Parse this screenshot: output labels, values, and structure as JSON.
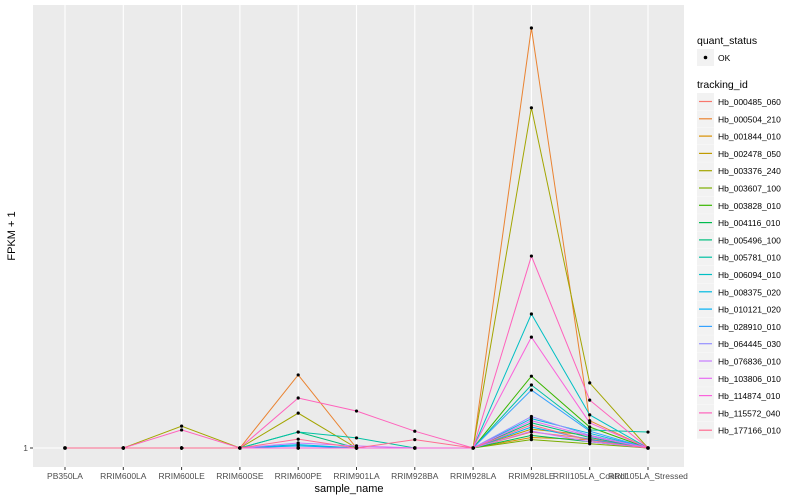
{
  "chart_data": {
    "type": "line",
    "xlabel": "sample_name",
    "ylabel": "FPKM + 1",
    "y_ticks": [
      "1"
    ],
    "ylim": [
      -3,
      106
    ],
    "grid": true,
    "legend_position": "right",
    "categories": [
      "PB350LA",
      "RRIM600LA",
      "RRIM600LE",
      "RRIM600SE",
      "RRIM600PE",
      "RRIM901LA",
      "RRIM928BA",
      "RRIM928LA",
      "RRIM928LE",
      "RRII105LA_Control",
      "RRII105LA_Stressed"
    ],
    "quant_status_legend": {
      "title": "quant_status",
      "entries": [
        "OK"
      ]
    },
    "legend_title": "tracking_id",
    "series": [
      {
        "name": "Hb_000485_060",
        "color": "#F8766D",
        "values": [
          1,
          1,
          1,
          1,
          1,
          1,
          1,
          1,
          4.8,
          3.2,
          1
        ]
      },
      {
        "name": "Hb_000504_210",
        "color": "#EA8331",
        "values": [
          1,
          1,
          1,
          1,
          18.4,
          1,
          1,
          1,
          101,
          7.5,
          1
        ]
      },
      {
        "name": "Hb_001844_010",
        "color": "#D89000",
        "values": [
          1,
          1,
          1,
          1,
          1,
          1,
          1,
          1,
          3.5,
          3.0,
          1
        ]
      },
      {
        "name": "Hb_002478_050",
        "color": "#C09B00",
        "values": [
          1,
          1,
          1,
          1,
          1,
          1,
          1,
          1,
          5.5,
          4.0,
          1
        ]
      },
      {
        "name": "Hb_003376_240",
        "color": "#A3A500",
        "values": [
          1,
          1,
          6.2,
          1,
          9.3,
          1,
          1,
          1,
          82,
          16.5,
          1
        ]
      },
      {
        "name": "Hb_003607_100",
        "color": "#7CAE00",
        "values": [
          1,
          1,
          1,
          1,
          1,
          1,
          1,
          1,
          3.0,
          2.0,
          1
        ]
      },
      {
        "name": "Hb_003828_010",
        "color": "#39B600",
        "values": [
          1,
          1,
          1,
          1,
          1,
          1,
          1,
          1,
          18.1,
          6.0,
          1
        ]
      },
      {
        "name": "Hb_004116_010",
        "color": "#00BB4E",
        "values": [
          1,
          1,
          1,
          1,
          1,
          1,
          1,
          1,
          4.0,
          2.5,
          1
        ]
      },
      {
        "name": "Hb_005496_100",
        "color": "#00BF7D",
        "values": [
          1,
          1,
          1,
          1,
          4.8,
          1,
          1,
          1,
          7.0,
          3.5,
          1
        ]
      },
      {
        "name": "Hb_005781_010",
        "color": "#00C1A3",
        "values": [
          1,
          1,
          1,
          1,
          4.8,
          3.4,
          1,
          1,
          16.0,
          5.3,
          4.8
        ]
      },
      {
        "name": "Hb_006094_010",
        "color": "#00BFC4",
        "values": [
          1,
          1,
          1,
          1,
          1,
          1,
          1,
          1,
          32.9,
          8.9,
          1
        ]
      },
      {
        "name": "Hb_008375_020",
        "color": "#00BAE0",
        "values": [
          1,
          1,
          1,
          1,
          1.8,
          1,
          1,
          1,
          8.0,
          4.5,
          1
        ]
      },
      {
        "name": "Hb_010121_020",
        "color": "#00B0F6",
        "values": [
          1,
          1,
          1,
          1,
          1.5,
          1,
          1,
          1,
          6.0,
          3.0,
          1
        ]
      },
      {
        "name": "Hb_028910_010",
        "color": "#35A2FF",
        "values": [
          1,
          1,
          1,
          1,
          1,
          1,
          1,
          1,
          14.8,
          5.0,
          1
        ]
      },
      {
        "name": "Hb_064445_030",
        "color": "#9590FF",
        "values": [
          1,
          1,
          1,
          1,
          1,
          1,
          1,
          1,
          8.5,
          4.0,
          1
        ]
      },
      {
        "name": "Hb_076836_010",
        "color": "#C77CFF",
        "values": [
          1,
          1,
          1,
          1,
          2.2,
          1.5,
          1,
          1,
          5.0,
          2.5,
          1
        ]
      },
      {
        "name": "Hb_103806_010",
        "color": "#E76BF3",
        "values": [
          1,
          1,
          1,
          1,
          1,
          1,
          1,
          1,
          7.5,
          3.8,
          1
        ]
      },
      {
        "name": "Hb_114874_010",
        "color": "#FA62DB",
        "values": [
          1,
          1,
          1,
          1,
          1,
          1,
          1,
          1,
          27.4,
          7.0,
          1
        ]
      },
      {
        "name": "Hb_115572_040",
        "color": "#FF62BC",
        "values": [
          1,
          1,
          5.3,
          1,
          12.9,
          9.8,
          5.0,
          1,
          46.7,
          12.4,
          1
        ]
      },
      {
        "name": "Hb_177166_010",
        "color": "#FF6C91",
        "values": [
          1,
          1,
          1,
          1,
          3.1,
          1,
          3.0,
          1,
          6.5,
          2.8,
          1
        ]
      }
    ]
  }
}
